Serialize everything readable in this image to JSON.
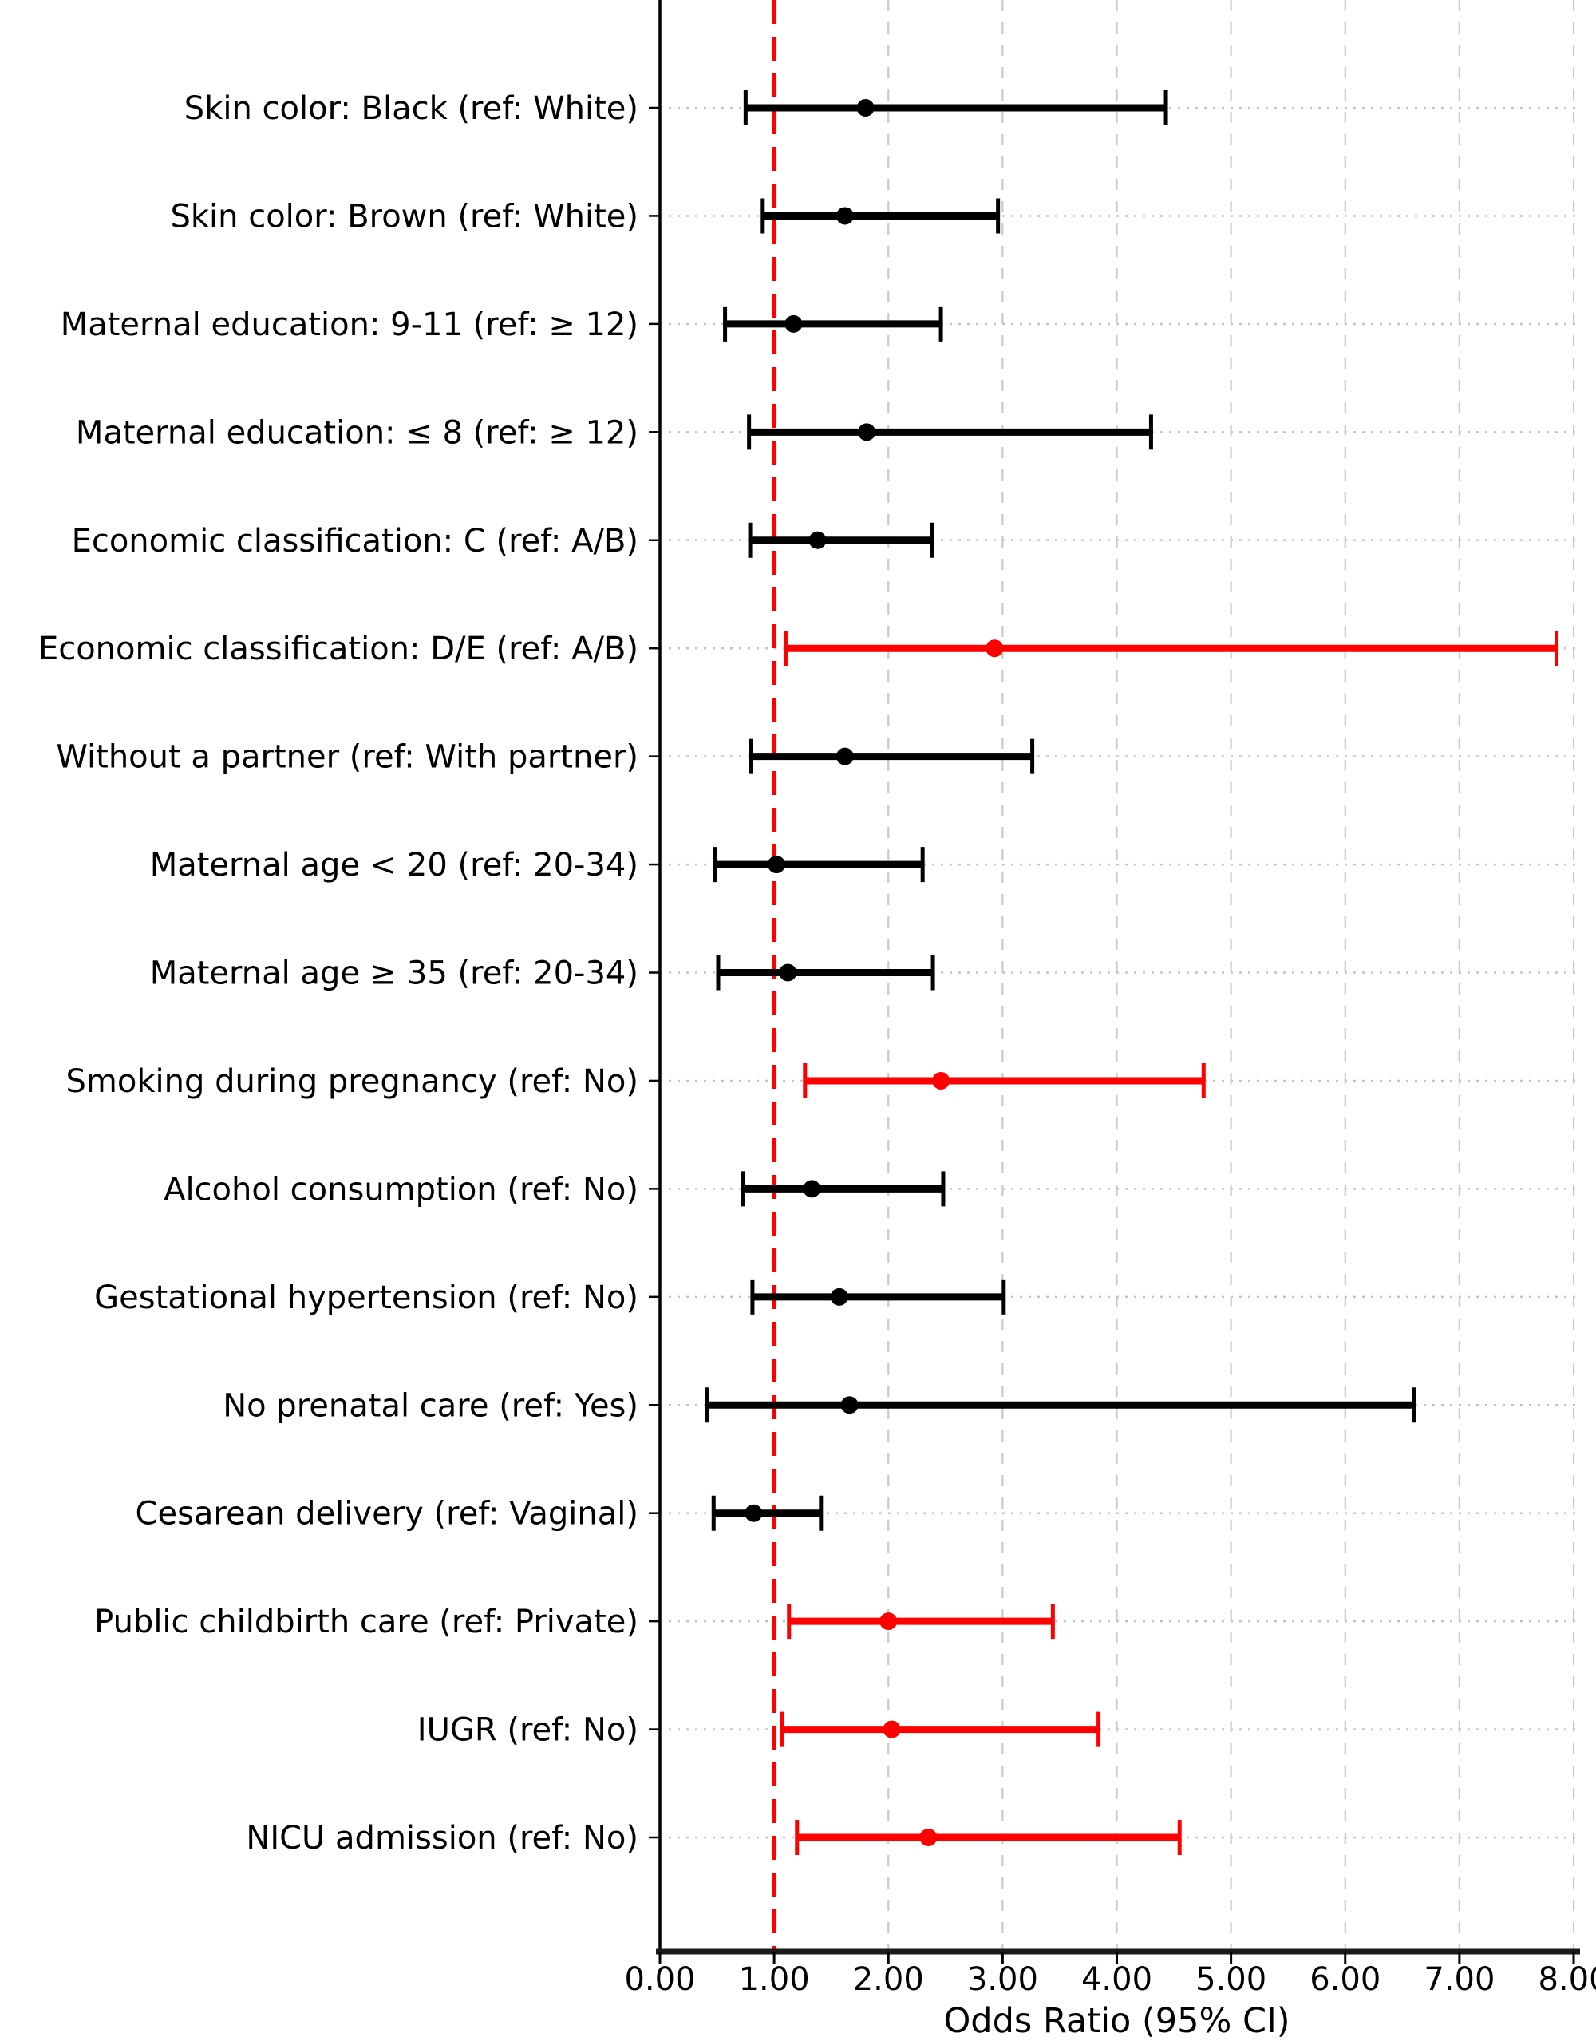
{
  "figure": {
    "background": "#ffffff"
  },
  "chart_data": {
    "type": "scatter",
    "subtype": "forest-plot-odds-ratios",
    "title": "",
    "xlabel": "Odds Ratio (95% CI)",
    "ylabel": "",
    "xlim": [
      0,
      8.2
    ],
    "xticks": [
      0,
      1,
      2,
      3,
      4,
      5,
      6,
      7,
      8
    ],
    "xtick_labels": [
      "0.00",
      "1.00",
      "2.00",
      "3.00",
      "4.00",
      "5.00",
      "6.00",
      "7.00",
      "8.00"
    ],
    "grid": true,
    "legend_position": "none",
    "reference_line": {
      "x": 1.0,
      "style": "dashed",
      "color": "#ff0000"
    },
    "colors": {
      "significant": "#ff0000",
      "non_significant": "#000000",
      "grid": "#c9c9c9",
      "axis": "#1a1a1a"
    },
    "rows": [
      {
        "label": "Skin color: Black (ref: White)",
        "or": 1.8,
        "ci_low": 0.75,
        "ci_high": 4.43,
        "significant": false
      },
      {
        "label": "Skin color: Brown (ref: White)",
        "or": 1.62,
        "ci_low": 0.9,
        "ci_high": 2.96,
        "significant": false
      },
      {
        "label": "Maternal education: 9-11 (ref: ≥ 12)",
        "or": 1.17,
        "ci_low": 0.57,
        "ci_high": 2.46,
        "significant": false
      },
      {
        "label": "Maternal education: ≤ 8 (ref: ≥ 12)",
        "or": 1.81,
        "ci_low": 0.78,
        "ci_high": 4.3,
        "significant": false
      },
      {
        "label": "Economic classification: C (ref: A/B)",
        "or": 1.38,
        "ci_low": 0.79,
        "ci_high": 2.38,
        "significant": false
      },
      {
        "label": "Economic classification: D/E (ref: A/B)",
        "or": 2.93,
        "ci_low": 1.1,
        "ci_high": 7.85,
        "significant": true
      },
      {
        "label": "Without a partner (ref: With partner)",
        "or": 1.62,
        "ci_low": 0.8,
        "ci_high": 3.26,
        "significant": false
      },
      {
        "label": "Maternal age < 20 (ref: 20-34)",
        "or": 1.02,
        "ci_low": 0.48,
        "ci_high": 2.3,
        "significant": false
      },
      {
        "label": "Maternal age ≥ 35 (ref: 20-34)",
        "or": 1.12,
        "ci_low": 0.51,
        "ci_high": 2.39,
        "significant": false
      },
      {
        "label": "Smoking during pregnancy (ref: No)",
        "or": 2.46,
        "ci_low": 1.27,
        "ci_high": 4.76,
        "significant": true
      },
      {
        "label": "Alcohol consumption (ref: No)",
        "or": 1.33,
        "ci_low": 0.73,
        "ci_high": 2.48,
        "significant": false
      },
      {
        "label": "Gestational hypertension (ref: No)",
        "or": 1.57,
        "ci_low": 0.81,
        "ci_high": 3.01,
        "significant": false
      },
      {
        "label": "No prenatal care (ref: Yes)",
        "or": 1.66,
        "ci_low": 0.41,
        "ci_high": 6.6,
        "significant": false
      },
      {
        "label": "Cesarean delivery (ref: Vaginal)",
        "or": 0.82,
        "ci_low": 0.47,
        "ci_high": 1.41,
        "significant": false
      },
      {
        "label": "Public childbirth care (ref: Private)",
        "or": 2.0,
        "ci_low": 1.13,
        "ci_high": 3.44,
        "significant": true
      },
      {
        "label": "IUGR (ref: No)",
        "or": 2.03,
        "ci_low": 1.07,
        "ci_high": 3.84,
        "significant": true
      },
      {
        "label": "NICU admission (ref: No)",
        "or": 2.35,
        "ci_low": 1.2,
        "ci_high": 4.55,
        "significant": true
      }
    ]
  }
}
